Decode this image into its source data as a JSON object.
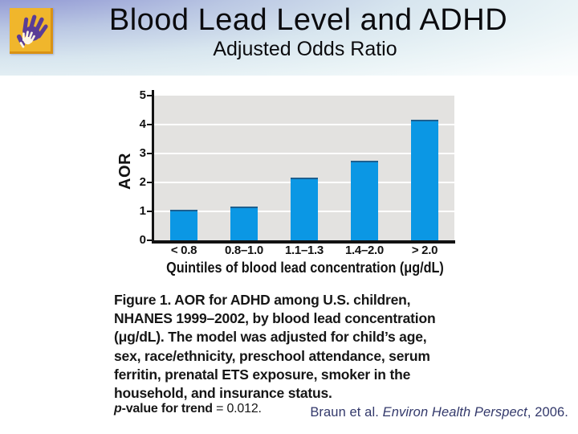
{
  "slide": {
    "title": "Blood Lead Level and ADHD",
    "subtitle": "Adjusted Odds Ratio",
    "citation": {
      "authors": "Braun et al. ",
      "journal": "Environ Health Perspect",
      "year": ", 2006."
    }
  },
  "logo": {
    "description": "two overlapping hands on gold square",
    "bg": "#f0b62c",
    "hand_primary": "#5a3d96",
    "hand_secondary": "#fdf6e3"
  },
  "chart_data": {
    "type": "bar",
    "title": "",
    "categories": [
      "< 0.8",
      "0.8–1.0",
      "1.1–1.3",
      "1.4–2.0",
      "> 2.0"
    ],
    "values": [
      1.0,
      1.1,
      2.1,
      2.7,
      4.1
    ],
    "xlabel": "Quintiles of blood lead concentration (μg/dL)",
    "ylabel": "AOR",
    "ylim": [
      0,
      5
    ],
    "yticks": [
      0,
      1,
      2,
      3,
      4,
      5
    ],
    "grid": true,
    "legend": "none",
    "bar_color": "#0b97e4",
    "bar_edge_color": "#1c5f8f",
    "plot_bg": "#e3e2e0"
  },
  "figure": {
    "caption_lines": [
      "Figure 1. AOR for ADHD among U.S. children,",
      "NHANES 1999–2002, by blood lead concentration",
      "(μg/dL). The model was adjusted for child’s age,",
      "sex, race/ethnicity, preschool attendance, serum",
      "ferritin, prenatal ETS exposure, smoker in the",
      "household, and insurance status."
    ],
    "pvalue": {
      "p": "p",
      "rest": "-value for trend ",
      "value": "= 0.012."
    }
  }
}
